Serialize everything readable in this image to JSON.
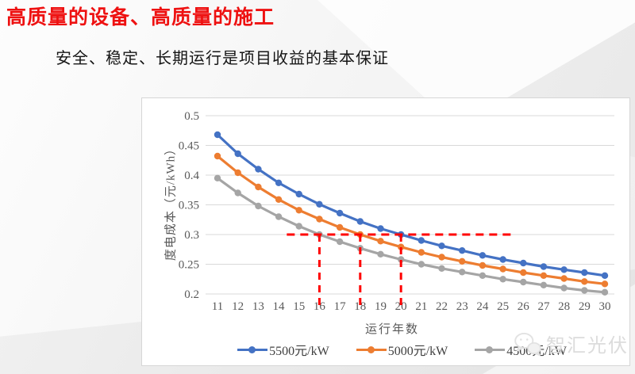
{
  "page": {
    "title": "高质量的设备、高质量的施工",
    "title_color": "#ee1111",
    "subtitle": "安全、稳定、长期运行是项目收益的基本保证",
    "watermark": {
      "label": "智汇光伏",
      "icon": "wechat-icon"
    }
  },
  "chart_data": {
    "type": "line",
    "title": "",
    "xlabel": "运行年数",
    "ylabel": "度电成本（元/kWh）",
    "x": [
      11,
      12,
      13,
      14,
      15,
      16,
      17,
      18,
      19,
      20,
      21,
      22,
      23,
      24,
      25,
      26,
      27,
      28,
      29,
      30
    ],
    "ylim": [
      0.2,
      0.5
    ],
    "yticks": [
      "0.2",
      "0.25",
      "0.3",
      "0.35",
      "0.4",
      "0.45",
      "0.5"
    ],
    "grid": "horizontal",
    "gridline_color": "#d9d9d9",
    "legend_position": "bottom",
    "series": [
      {
        "name": "5500元/kW",
        "color": "#4472C4",
        "values": [
          0.468,
          0.436,
          0.41,
          0.387,
          0.368,
          0.351,
          0.336,
          0.322,
          0.31,
          0.3,
          0.29,
          0.281,
          0.273,
          0.265,
          0.258,
          0.252,
          0.246,
          0.241,
          0.236,
          0.231
        ]
      },
      {
        "name": "5000元/kW",
        "color": "#ED7D31",
        "values": [
          0.432,
          0.404,
          0.38,
          0.359,
          0.341,
          0.326,
          0.312,
          0.3,
          0.289,
          0.279,
          0.27,
          0.262,
          0.255,
          0.248,
          0.242,
          0.236,
          0.231,
          0.226,
          0.221,
          0.217
        ]
      },
      {
        "name": "4500元/kW",
        "color": "#A5A5A5",
        "values": [
          0.395,
          0.37,
          0.348,
          0.33,
          0.314,
          0.3,
          0.288,
          0.277,
          0.267,
          0.258,
          0.25,
          0.243,
          0.237,
          0.231,
          0.225,
          0.22,
          0.215,
          0.21,
          0.206,
          0.203
        ]
      }
    ],
    "annotations": {
      "color": "#FF0000",
      "h_line": {
        "y": 0.3,
        "x_start": 14.4,
        "x_end": 25.4
      },
      "v_lines": [
        {
          "x": 16
        },
        {
          "x": 18
        },
        {
          "x": 20
        }
      ],
      "v_line_y_top": 0.3,
      "v_line_y_bottom": 0.18
    }
  }
}
